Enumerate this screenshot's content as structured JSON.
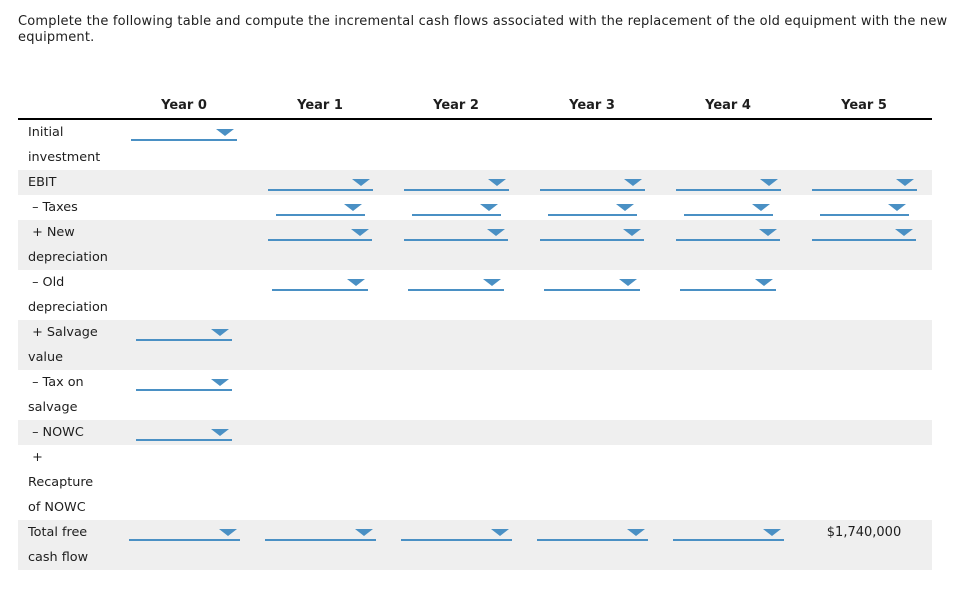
{
  "instruction": "Complete the following table and compute the incremental cash flows associated with the replacement of the old equipment with the new equipment.",
  "colors": {
    "accent_blue": "#4a90c4",
    "row_shade": "#efefef",
    "text": "#1e1e1e"
  },
  "table": {
    "columns": [
      "Year 0",
      "Year 1",
      "Year 2",
      "Year 3",
      "Year 4",
      "Year 5"
    ],
    "rows": [
      {
        "id": "initial-investment",
        "label_lines": [
          "Initial",
          "investment"
        ],
        "cells": [
          {
            "type": "select"
          },
          {
            "type": "empty"
          },
          {
            "type": "empty"
          },
          {
            "type": "empty"
          },
          {
            "type": "empty"
          },
          {
            "type": "empty"
          }
        ]
      },
      {
        "id": "ebit",
        "label_lines": [
          "EBIT"
        ],
        "cells": [
          {
            "type": "empty"
          },
          {
            "type": "select"
          },
          {
            "type": "select"
          },
          {
            "type": "select"
          },
          {
            "type": "select"
          },
          {
            "type": "select"
          }
        ]
      },
      {
        "id": "taxes",
        "label_lines": [
          " – Taxes"
        ],
        "cells": [
          {
            "type": "empty"
          },
          {
            "type": "select"
          },
          {
            "type": "select"
          },
          {
            "type": "select"
          },
          {
            "type": "select"
          },
          {
            "type": "select"
          }
        ]
      },
      {
        "id": "new-depreciation",
        "label_lines": [
          " + New",
          "depreciation"
        ],
        "cells": [
          {
            "type": "empty"
          },
          {
            "type": "select"
          },
          {
            "type": "select"
          },
          {
            "type": "select"
          },
          {
            "type": "select"
          },
          {
            "type": "select"
          }
        ]
      },
      {
        "id": "old-depreciation",
        "label_lines": [
          " – Old",
          "depreciation"
        ],
        "cells": [
          {
            "type": "empty"
          },
          {
            "type": "select"
          },
          {
            "type": "select"
          },
          {
            "type": "select"
          },
          {
            "type": "select"
          },
          {
            "type": "empty"
          }
        ]
      },
      {
        "id": "salvage-value",
        "label_lines": [
          " + Salvage",
          "value"
        ],
        "cells": [
          {
            "type": "select"
          },
          {
            "type": "empty"
          },
          {
            "type": "empty"
          },
          {
            "type": "empty"
          },
          {
            "type": "empty"
          },
          {
            "type": "empty"
          }
        ]
      },
      {
        "id": "tax-on-salvage",
        "label_lines": [
          " – Tax on",
          "salvage"
        ],
        "cells": [
          {
            "type": "select"
          },
          {
            "type": "empty"
          },
          {
            "type": "empty"
          },
          {
            "type": "empty"
          },
          {
            "type": "empty"
          },
          {
            "type": "empty"
          }
        ]
      },
      {
        "id": "nowc",
        "label_lines": [
          " – NOWC"
        ],
        "cells": [
          {
            "type": "select"
          },
          {
            "type": "empty"
          },
          {
            "type": "empty"
          },
          {
            "type": "empty"
          },
          {
            "type": "empty"
          },
          {
            "type": "empty"
          }
        ]
      },
      {
        "id": "recapture-of-nowc",
        "label_lines": [
          " +",
          "Recapture",
          "of NOWC"
        ],
        "cells": [
          {
            "type": "empty"
          },
          {
            "type": "empty"
          },
          {
            "type": "empty"
          },
          {
            "type": "empty"
          },
          {
            "type": "empty"
          },
          {
            "type": "empty"
          }
        ]
      },
      {
        "id": "total-free-cash-flow",
        "label_lines": [
          "Total free",
          "cash flow"
        ],
        "cells": [
          {
            "type": "select"
          },
          {
            "type": "select"
          },
          {
            "type": "select"
          },
          {
            "type": "select"
          },
          {
            "type": "select"
          },
          {
            "type": "value",
            "text": "$1,740,000"
          }
        ]
      }
    ]
  }
}
